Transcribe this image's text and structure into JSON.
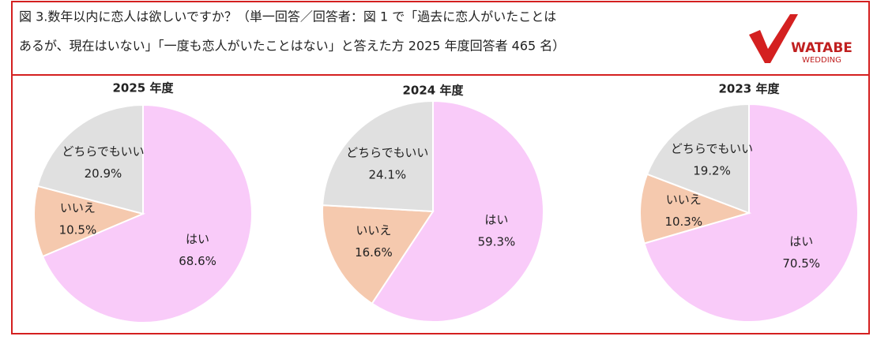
{
  "header": {
    "title_lines": [
      "図 3.数年以内に恋人は欲しいですか？（単一回答／回答者：図 1 で「過去に恋人がいたことは",
      "あるが、現在はいない」「一度も恋人がいたことはない」と答えた方 2025 年度回答者 465 名）"
    ],
    "logo": [
      "WATABE",
      "WEDDING"
    ]
  },
  "chart_data": [
    {
      "type": "pie",
      "title": "2025 年度",
      "categories": [
        "はい",
        "いいえ",
        "どちらでもいい"
      ],
      "values": [
        68.6,
        10.5,
        20.9
      ],
      "value_labels": [
        "68.6%",
        "10.5%",
        "20.9%"
      ],
      "colors": [
        "#f9cbf9",
        "#f5c9ae",
        "#e0e0e0"
      ]
    },
    {
      "type": "pie",
      "title": "2024 年度",
      "categories": [
        "はい",
        "いいえ",
        "どちらでもいい"
      ],
      "values": [
        59.3,
        16.6,
        24.1
      ],
      "value_labels": [
        "59.3%",
        "16.6%",
        "24.1%"
      ],
      "colors": [
        "#f9cbf9",
        "#f5c9ae",
        "#e0e0e0"
      ]
    },
    {
      "type": "pie",
      "title": "2023 年度",
      "categories": [
        "はい",
        "いいえ",
        "どちらでもいい"
      ],
      "values": [
        70.5,
        10.3,
        19.2
      ],
      "value_labels": [
        "70.5%",
        "10.3%",
        "19.2%"
      ],
      "colors": [
        "#f9cbf9",
        "#f5c9ae",
        "#e0e0e0"
      ]
    }
  ]
}
